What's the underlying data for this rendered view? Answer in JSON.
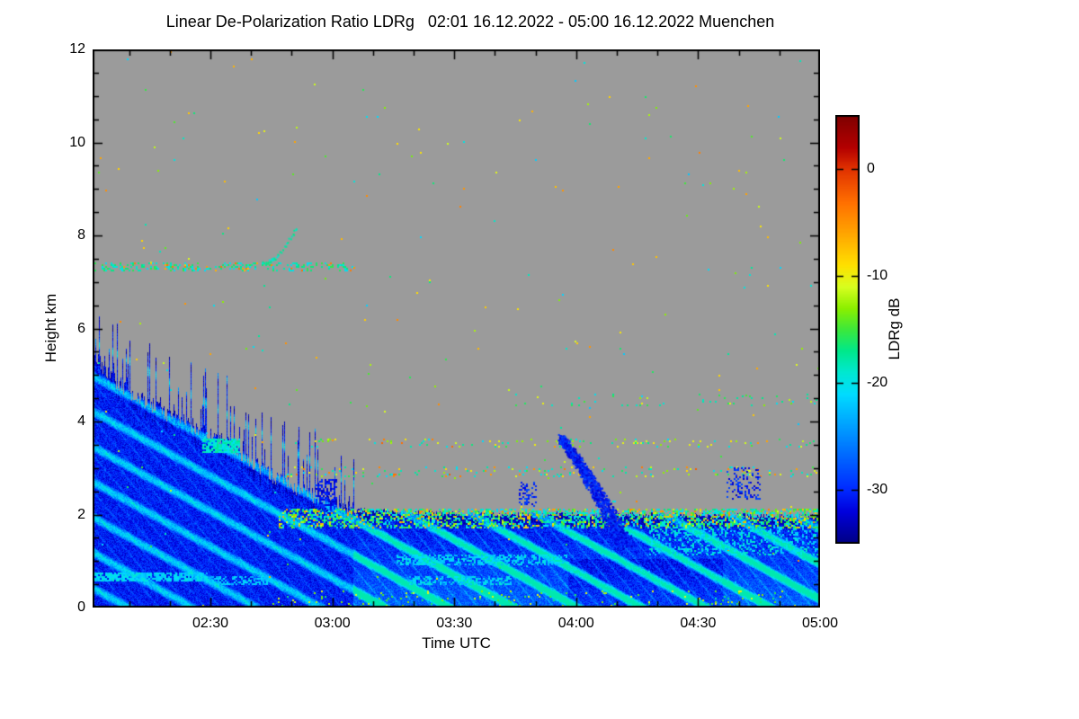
{
  "title": "Linear De-Polarization Ratio LDRg   02:01 16.12.2022 - 05:00 16.12.2022 Muenchen",
  "axes": {
    "x_label": "Time UTC",
    "y_label": "Height km",
    "x_ticks": [
      "02:30",
      "03:00",
      "03:30",
      "04:00",
      "04:30",
      "05:00"
    ],
    "y_ticks": [
      "0",
      "2",
      "4",
      "6",
      "8",
      "10",
      "12"
    ]
  },
  "colorbar": {
    "label": "LDRg dB",
    "vmin": -35,
    "vmax": 5,
    "ticks": [
      "0",
      "-10",
      "-20",
      "-30"
    ]
  },
  "chart_data": {
    "type": "heatmap",
    "title": "Linear De-Polarization Ratio LDRg   02:01 16.12.2022 - 05:00 16.12.2022 Muenchen",
    "site": "Muenchen",
    "date": "16.12.2022",
    "time_start": "02:01",
    "time_end": "05:00",
    "xlabel": "Time UTC",
    "ylabel": "Height km",
    "value_label": "LDRg dB",
    "x_range_minutes": [
      121,
      300
    ],
    "y_range_km": [
      0,
      12
    ],
    "value_range": [
      -35,
      5
    ],
    "background_color": "#9b9b9b",
    "background_meaning": "no signal / no data (grey)",
    "colormap": [
      [
        -35,
        "#000082"
      ],
      [
        -32,
        "#0000dc"
      ],
      [
        -30,
        "#0028ff"
      ],
      [
        -27,
        "#0064ff"
      ],
      [
        -24,
        "#00a0ff"
      ],
      [
        -21,
        "#00dcff"
      ],
      [
        -19,
        "#00e8d2"
      ],
      [
        -17,
        "#00e88c"
      ],
      [
        -15,
        "#3ce83c"
      ],
      [
        -13,
        "#8cf000"
      ],
      [
        -11,
        "#d8ff20"
      ],
      [
        -9,
        "#ffe100"
      ],
      [
        -6,
        "#ffa500"
      ],
      [
        -3,
        "#ff6e00"
      ],
      [
        0,
        "#e13200"
      ],
      [
        2,
        "#b40000"
      ],
      [
        5,
        "#7f0000"
      ]
    ],
    "features": [
      {
        "kind": "cloud",
        "desc": "Precipitating cloud mass with low LDR (blue, -34 to -25 dB); jagged top descends from ~5.5 km at 02:01 to ~2 km by 03:05, then persists as a shallow layer to 05:00 with bright cyan fall-streak texture below ~1.7 km",
        "profile": [
          [
            121,
            5.4
          ],
          [
            126,
            4.9
          ],
          [
            132,
            4.5
          ],
          [
            139,
            4.15
          ],
          [
            147,
            3.85
          ],
          [
            154,
            3.55
          ],
          [
            161,
            3.05
          ],
          [
            169,
            2.65
          ],
          [
            177,
            2.3
          ],
          [
            184,
            2.1
          ],
          [
            200,
            2.02
          ],
          [
            300,
            1.95
          ]
        ],
        "base_value": -30.5,
        "noise": 2.5,
        "streak_boost": 9,
        "cyan_zone": {
          "t_min": 185,
          "h_max": 1.7,
          "boost": 3.5
        }
      },
      {
        "kind": "speckle",
        "desc": "isolated random noise pixels over whole plot",
        "t": [
          121,
          300
        ],
        "h": [
          0,
          12
        ],
        "density": 0.002,
        "values": [
          [
            -22,
            -4,
            1
          ]
        ]
      },
      {
        "kind": "speckle",
        "desc": "bright (melting-layer-like) band at 1.8-2.1 km from ~02:50 to 05:00: cyan/green/yellow with sparse orange dots",
        "t": [
          167,
          300
        ],
        "h": [
          1.72,
          2.12
        ],
        "density": 0.5,
        "values": [
          [
            -22,
            -16,
            0.55
          ],
          [
            -16,
            -11,
            0.3
          ],
          [
            -9,
            -4,
            0.15
          ]
        ]
      },
      {
        "kind": "speckle",
        "desc": "speckled line ~2.9 km, cyan/yellow/orange",
        "t": [
          168,
          300
        ],
        "h": [
          2.82,
          3.03
        ],
        "density": 0.1,
        "values": [
          [
            -21,
            -15,
            0.5
          ],
          [
            -13,
            -8,
            0.3
          ],
          [
            -6,
            -2,
            0.2
          ]
        ]
      },
      {
        "kind": "speckle",
        "desc": "speckled line ~3.5 km, cyan/green/yellow",
        "t": [
          170,
          300
        ],
        "h": [
          3.45,
          3.63
        ],
        "density": 0.07,
        "values": [
          [
            -21,
            -15,
            0.45
          ],
          [
            -14,
            -9,
            0.45
          ],
          [
            -6,
            -2,
            0.1
          ]
        ]
      },
      {
        "kind": "speckle",
        "desc": "sparse speckled line ~4.4 km after 03:45",
        "t": [
          225,
          300
        ],
        "h": [
          4.35,
          4.58
        ],
        "density": 0.05,
        "values": [
          [
            -21,
            -15,
            0.8
          ],
          [
            -14,
            -10,
            0.2
          ]
        ]
      },
      {
        "kind": "speckle",
        "desc": "thin speckled layer at ~7.3 km from 02:01 to ~03:05, mostly cyan with a few orange dots",
        "t": [
          121,
          186
        ],
        "h": [
          7.25,
          7.42
        ],
        "density": 0.3,
        "values": [
          [
            -21,
            -15,
            0.85
          ],
          [
            -8,
            -3,
            0.15
          ]
        ]
      },
      {
        "kind": "speckle",
        "desc": "green/yellow speckles near the ground",
        "t": [
          165,
          295
        ],
        "h": [
          0.0,
          0.35
        ],
        "density": 0.045,
        "values": [
          [
            -17,
            -10,
            1
          ]
        ]
      },
      {
        "kind": "patch",
        "desc": "bright cyan blob at ~3.5 km around 02:28-02:37",
        "t": [
          148,
          157
        ],
        "h": [
          3.35,
          3.62
        ],
        "density": 0.85,
        "values": [
          [
            -21,
            -17,
            1
          ]
        ]
      },
      {
        "kind": "patch",
        "desc": "bright cyan low-level streak ~0.65 km at left edge",
        "t": [
          121,
          149
        ],
        "h": [
          0.58,
          0.74
        ],
        "density": 0.8,
        "values": [
          [
            -23,
            -19,
            1
          ]
        ]
      },
      {
        "kind": "patch",
        "desc": "fainter continuation of low streak",
        "t": [
          150,
          164
        ],
        "h": [
          0.52,
          0.66
        ],
        "density": 0.45,
        "values": [
          [
            -24,
            -20,
            1
          ]
        ]
      },
      {
        "kind": "patch",
        "desc": "bright cyan layer ~1 km, 03:16-03:58",
        "t": [
          196,
          238
        ],
        "h": [
          0.92,
          1.14
        ],
        "density": 0.5,
        "values": [
          [
            -23,
            -19,
            1
          ]
        ]
      },
      {
        "kind": "patch",
        "desc": "bright cyan layer ~0.6 km, 03:19-03:44",
        "t": [
          199,
          224
        ],
        "h": [
          0.5,
          0.66
        ],
        "density": 0.5,
        "values": [
          [
            -23,
            -19,
            1
          ]
        ]
      },
      {
        "kind": "patch",
        "desc": "cyan streaks 1.2-1.7 km near right edge",
        "t": [
          258,
          300
        ],
        "h": [
          1.15,
          1.7
        ],
        "density": 0.3,
        "values": [
          [
            -23,
            -18,
            1
          ]
        ]
      },
      {
        "kind": "patch",
        "desc": "dark blue virga below band ~03:00",
        "t": [
          176,
          181
        ],
        "h": [
          2.1,
          2.75
        ],
        "density": 0.5,
        "values": [
          [
            -33,
            -29,
            1
          ]
        ]
      },
      {
        "kind": "patch",
        "desc": "small dark blue virga ~03:47",
        "t": [
          226,
          230
        ],
        "h": [
          2.2,
          2.7
        ],
        "density": 0.35,
        "values": [
          [
            -32,
            -28,
            1
          ]
        ]
      },
      {
        "kind": "fallstreak",
        "desc": "dark blue fall streak starting ~03:56 at 3.6 km, descending and widening to ~1.3 km by 04:12",
        "t0": 236,
        "t1": 252,
        "h0": 3.65,
        "h1": 1.35,
        "w0": 0.6,
        "w1": 2.2,
        "v": [
          -33,
          -28
        ],
        "density": 0.85
      },
      {
        "kind": "patch",
        "desc": "dark blue dotted patch 2.4-3.0 km around 04:37-04:45",
        "t": [
          277,
          285
        ],
        "h": [
          2.35,
          3.0
        ],
        "density": 0.25,
        "values": [
          [
            -33,
            -28,
            1
          ]
        ]
      },
      {
        "kind": "arc",
        "desc": "thin cirrus wisp rising from 7.4 to 8.2 km near 02:45-02:51",
        "t": [
          163,
          171
        ],
        "h": [
          7.42,
          8.2
        ],
        "value": -18,
        "density": 0.65
      }
    ]
  }
}
